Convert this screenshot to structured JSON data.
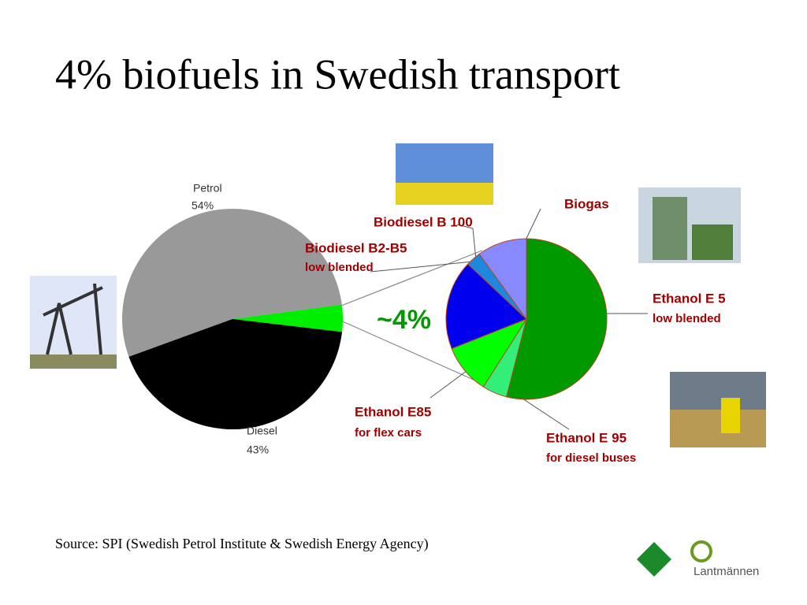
{
  "title": "4% biofuels in Swedish transport",
  "source": "Source: SPI (Swedish Petrol Institute & Swedish Energy Agency)",
  "logo_text": "Lantmännen",
  "chart_data": [
    {
      "type": "pie",
      "categories": [
        "Petrol",
        null,
        "Diesel"
      ],
      "values": [
        54,
        4,
        43
      ],
      "value_labels": [
        "54%",
        "~4%",
        "43%"
      ],
      "colors": [
        "#999999",
        "#00ee00",
        "#000000"
      ]
    },
    {
      "type": "pie",
      "categories": [
        "Ethanol E 5",
        "Ethanol E 95",
        "Ethanol E85",
        "Biodiesel B2-B5",
        "Biodiesel B 100",
        "Biogas"
      ],
      "sublabels": [
        "low blended",
        "for diesel buses",
        "for flex cars",
        "low blended",
        null,
        null
      ],
      "values": [
        54,
        5,
        10,
        18,
        3,
        10
      ],
      "colors": [
        "#009900",
        "#33ee77",
        "#00ff00",
        "#0000ee",
        "#1e88dd",
        "#8888ff"
      ]
    }
  ]
}
